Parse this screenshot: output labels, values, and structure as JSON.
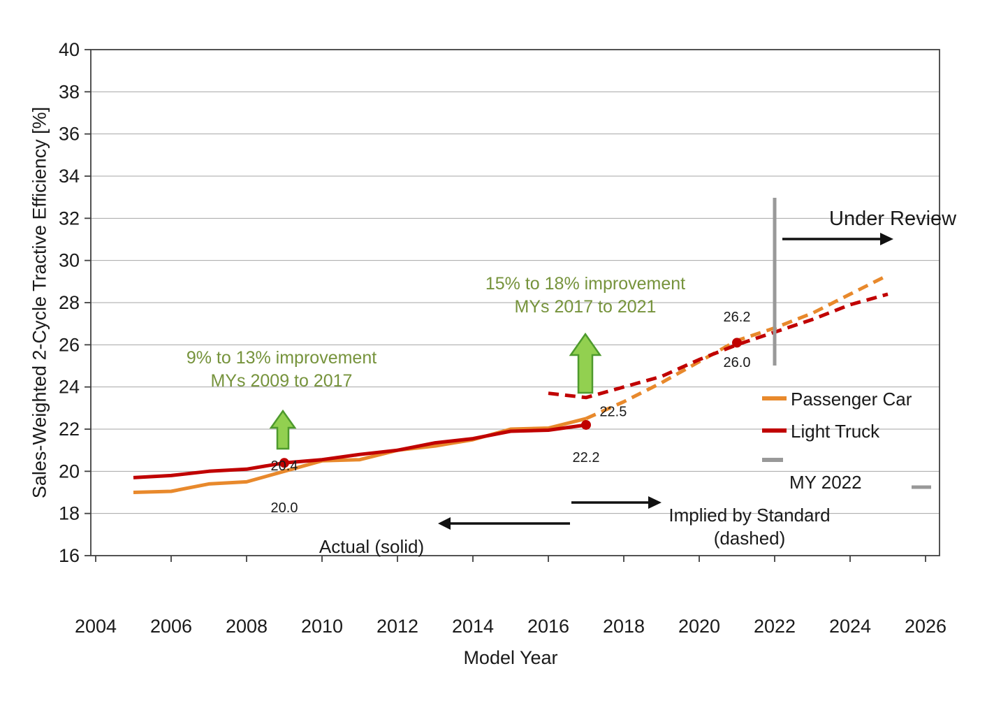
{
  "colors": {
    "passenger_car": "#E8892C",
    "light_truck": "#C00000",
    "annotation_green": "#76933C",
    "arrow_fill": "#92D050",
    "arrow_outline": "#4E9A2D",
    "gray": "#999999",
    "gridline": "#A6A6A6",
    "axis": "#404040",
    "black": "#111111"
  },
  "chart_data": {
    "type": "line",
    "title": "",
    "xlabel": "Model Year",
    "ylabel": "Sales-Weighted 2-Cycle Tractive Efficiency [%]",
    "xlim": [
      2004,
      2026
    ],
    "ylim": [
      16,
      40
    ],
    "xticks": [
      2004,
      2006,
      2008,
      2010,
      2012,
      2014,
      2016,
      2018,
      2020,
      2022,
      2024,
      2026
    ],
    "yticks": [
      16,
      18,
      20,
      22,
      24,
      26,
      28,
      30,
      32,
      34,
      36,
      38,
      40
    ],
    "grid": "horizontal",
    "legend_position": "right",
    "series": [
      {
        "id": "passenger-car-actual",
        "name": "Passenger Car (Actual)",
        "color_key": "passenger_car",
        "style": "solid",
        "x": [
          2005,
          2006,
          2007,
          2008,
          2009,
          2010,
          2011,
          2012,
          2013,
          2014,
          2015,
          2016,
          2017
        ],
        "y": [
          19.0,
          19.05,
          19.4,
          19.5,
          20.0,
          20.5,
          20.55,
          21.0,
          21.2,
          21.5,
          22.0,
          22.05,
          22.5
        ]
      },
      {
        "id": "light-truck-actual",
        "name": "Light Truck (Actual)",
        "color_key": "light_truck",
        "style": "solid",
        "x": [
          2005,
          2006,
          2007,
          2008,
          2009,
          2010,
          2011,
          2012,
          2013,
          2014,
          2015,
          2016,
          2017
        ],
        "y": [
          19.7,
          19.8,
          20.0,
          20.1,
          20.4,
          20.55,
          20.8,
          21.0,
          21.35,
          21.55,
          21.9,
          21.95,
          22.2
        ]
      },
      {
        "id": "passenger-car-implied",
        "name": "Passenger Car (Implied by Standard)",
        "color_key": "passenger_car",
        "style": "dashed",
        "x": [
          2017,
          2018,
          2019,
          2020,
          2021,
          2022,
          2023,
          2024,
          2025
        ],
        "y": [
          22.5,
          23.3,
          24.2,
          25.2,
          26.2,
          26.8,
          27.5,
          28.4,
          29.3
        ]
      },
      {
        "id": "light-truck-implied",
        "name": "Light Truck (Implied by Standard)",
        "color_key": "light_truck",
        "style": "dashed",
        "x": [
          2016,
          2017,
          2018,
          2019,
          2020,
          2021,
          2022,
          2023,
          2024,
          2025
        ],
        "y": [
          23.7,
          23.5,
          24.0,
          24.5,
          25.3,
          26.0,
          26.6,
          27.2,
          27.9,
          28.4
        ]
      }
    ],
    "markers": [
      {
        "x": 2009,
        "y": 20.4
      },
      {
        "x": 2017,
        "y": 22.2
      },
      {
        "x": 2021,
        "y": 26.1
      }
    ],
    "point_labels": [
      {
        "text": "20.4",
        "x": 2009,
        "y": 20.05
      },
      {
        "text": "20.0",
        "x": 2009,
        "y": 18.05
      },
      {
        "text": "22.5",
        "x": 2017.72,
        "y": 22.62
      },
      {
        "text": "22.2",
        "x": 2017,
        "y": 20.45
      },
      {
        "text": "26.2",
        "x": 2021,
        "y": 27.1
      },
      {
        "text": "26.0",
        "x": 2021,
        "y": 24.95
      }
    ]
  },
  "annotations": {
    "improvement_1": {
      "line1": "9% to 13% improvement",
      "line2": "MYs 2009 to 2017"
    },
    "improvement_2": {
      "line1": "15% to 18% improvement",
      "line2": "MYs 2017 to 2021"
    },
    "under_review": "Under Review",
    "actual_label": "Actual (solid)",
    "implied_line1": "Implied by Standard",
    "implied_line2": "(dashed)"
  },
  "legend": {
    "passenger_car": "Passenger Car",
    "light_truck": "Light Truck",
    "my_2022": "MY 2022"
  }
}
